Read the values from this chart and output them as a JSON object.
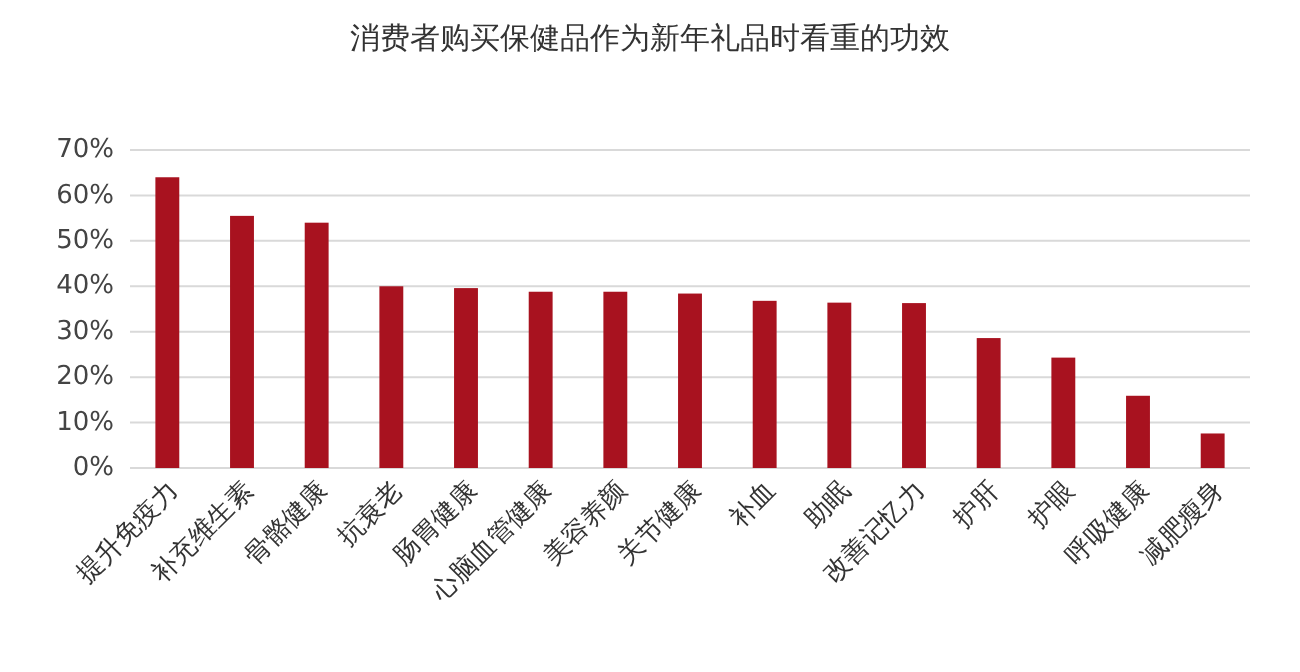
{
  "chart_data": {
    "type": "bar",
    "title": "消费者购买保健品作为新年礼品时看重的功效",
    "categories": [
      "提升免疫力",
      "补充维生素",
      "骨骼健康",
      "抗衰老",
      "肠胃健康",
      "心脑血管健康",
      "美容养颜",
      "关节健康",
      "补血",
      "助眠",
      "改善记忆力",
      "护肝",
      "护眼",
      "呼吸健康",
      "减肥瘦身"
    ],
    "values": [
      64,
      55.5,
      54,
      40,
      39.6,
      38.8,
      38.8,
      38.4,
      36.8,
      36.4,
      36.3,
      28.6,
      24.3,
      15.9,
      7.6
    ],
    "color": "#a8121f",
    "ylim": [
      0,
      70
    ],
    "yticks": [
      {
        "value": 0,
        "label": "0%"
      },
      {
        "value": 10,
        "label": "10%"
      },
      {
        "value": 20,
        "label": "20%"
      },
      {
        "value": 30,
        "label": "30%"
      },
      {
        "value": 40,
        "label": "40%"
      },
      {
        "value": 50,
        "label": "50%"
      },
      {
        "value": 60,
        "label": "60%"
      },
      {
        "value": 70,
        "label": "70%"
      }
    ],
    "grid": "y"
  }
}
